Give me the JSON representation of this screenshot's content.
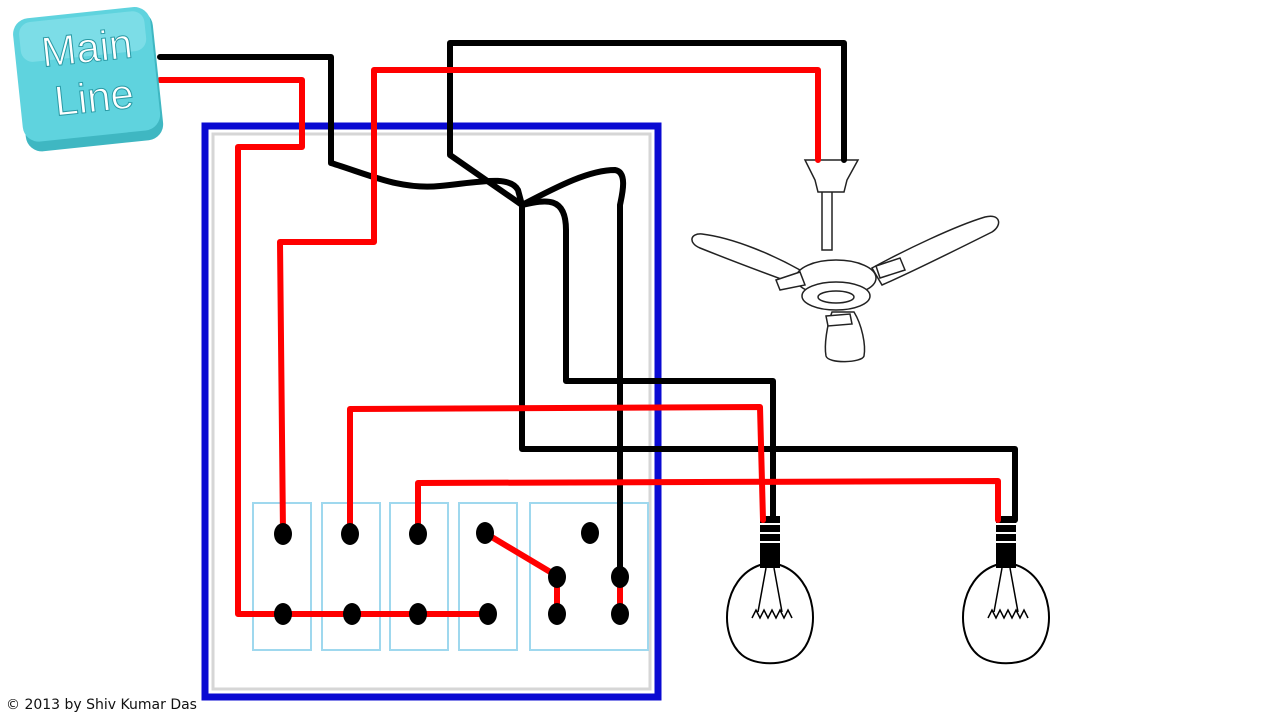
{
  "main_line": {
    "label_line1": "Main",
    "label_line2": "Line",
    "badge_color": "#5fd3de"
  },
  "colors": {
    "live_wire": "#ff0000",
    "neutral_wire": "#000000",
    "board_border": "#0a0ad2",
    "switch_outline": "#9fd8ee",
    "terminal": "#000000"
  },
  "components": {
    "switchboard": "switchboard",
    "switches": [
      "switch-1",
      "switch-2",
      "switch-3",
      "switch-4",
      "socket"
    ],
    "fan": "ceiling-fan",
    "bulbs": [
      "bulb-1",
      "bulb-2"
    ]
  },
  "copyright": "© 2013 by Shiv Kumar Das"
}
